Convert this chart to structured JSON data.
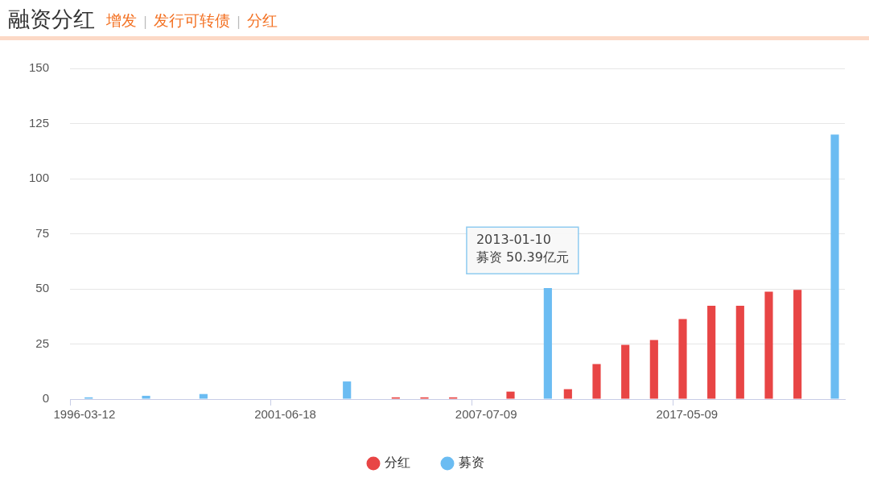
{
  "chart_data": {
    "type": "bar",
    "title": "融资分红",
    "subtitle": "增发 | 发行可转债 | 分红",
    "categories": [
      "1996-03-12",
      null,
      null,
      null,
      null,
      null,
      null,
      "2001-06-18",
      null,
      null,
      null,
      null,
      null,
      null,
      "2007-07-09",
      null,
      null,
      null,
      null,
      null,
      null,
      "2017-05-09",
      null,
      null,
      null,
      null,
      null
    ],
    "series": [
      {
        "name": "分红",
        "color": "#e84545",
        "values": [
          null,
          null,
          null,
          null,
          null,
          null,
          null,
          null,
          null,
          null,
          null,
          0.8,
          0.8,
          0.8,
          null,
          3.4,
          null,
          4.5,
          15.9,
          24.6,
          26.8,
          36.3,
          42.3,
          42.3,
          48.7,
          49.5,
          null
        ]
      },
      {
        "name": "募资",
        "color": "#6bbcf2",
        "values": [
          0.8,
          null,
          1.5,
          null,
          2.3,
          null,
          null,
          null,
          null,
          8,
          null,
          null,
          null,
          null,
          null,
          null,
          50.39,
          null,
          null,
          null,
          null,
          null,
          null,
          null,
          null,
          null,
          120
        ]
      }
    ],
    "ylim": [
      0,
      150
    ],
    "yticks": [
      0,
      25,
      50,
      75,
      100,
      125,
      150
    ],
    "grid": "y",
    "legend": "bottom",
    "annotations": [
      "2013-01-10\n募资 50.39亿元"
    ]
  }
}
